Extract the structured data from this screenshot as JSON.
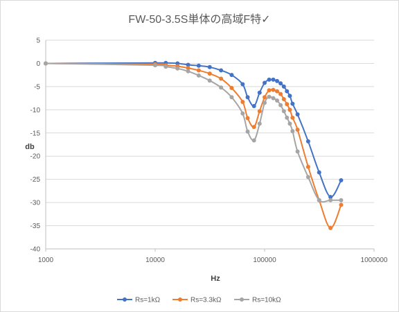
{
  "chart_data": {
    "type": "scatter",
    "title": "FW-50-3.5S単体の高域F特✓",
    "xlabel": "Hz",
    "ylabel": "db",
    "xscale": "log",
    "xlim": [
      1000,
      1000000
    ],
    "ylim": [
      -40,
      5
    ],
    "x_ticks": [
      "1000",
      "10000",
      "100000",
      "1000000"
    ],
    "y_ticks": [
      "5",
      "0",
      "-5",
      "-10",
      "-15",
      "-20",
      "-25",
      "-30",
      "-35",
      "-40"
    ],
    "grid": "horizontal",
    "legend_position": "bottom",
    "line_style": "smooth-with-markers",
    "series": [
      {
        "name": "Rs=1kΩ",
        "color": "#4472c4",
        "x": [
          1000,
          10000,
          12500,
          16000,
          20000,
          25000,
          31500,
          40000,
          50000,
          63000,
          70000,
          80000,
          90000,
          100000,
          110000,
          120000,
          130000,
          140000,
          150000,
          160000,
          170000,
          180000,
          200000,
          250000,
          315000,
          400000,
          500000
        ],
        "y": [
          0,
          0.1,
          0.1,
          0,
          -0.3,
          -0.5,
          -0.8,
          -1.5,
          -2.5,
          -4.5,
          -7.3,
          -9.2,
          -6.3,
          -4.2,
          -3.5,
          -3.5,
          -3.8,
          -4.3,
          -5.0,
          -6.0,
          -7.0,
          -8.7,
          -11.0,
          -16.8,
          -23.5,
          -28.8,
          -25.2
        ]
      },
      {
        "name": "Rs=3.3kΩ",
        "color": "#ed7d31",
        "x": [
          1000,
          10000,
          12500,
          16000,
          20000,
          25000,
          31500,
          40000,
          50000,
          63000,
          70000,
          80000,
          90000,
          100000,
          110000,
          120000,
          130000,
          140000,
          150000,
          160000,
          170000,
          180000,
          200000,
          250000,
          315000,
          400000,
          500000
        ],
        "y": [
          0,
          -0.2,
          -0.4,
          -0.6,
          -1.0,
          -1.5,
          -2.2,
          -3.3,
          -5.3,
          -8.3,
          -11.8,
          -13.7,
          -10.3,
          -7.3,
          -5.8,
          -5.7,
          -6.0,
          -6.6,
          -7.7,
          -8.8,
          -10.0,
          -11.7,
          -14.3,
          -22.3,
          -29.5,
          -35.5,
          -30.5
        ]
      },
      {
        "name": "Rs=10kΩ",
        "color": "#a5a5a5",
        "x": [
          1000,
          10000,
          12500,
          16000,
          20000,
          25000,
          31500,
          40000,
          50000,
          63000,
          70000,
          80000,
          90000,
          100000,
          110000,
          120000,
          130000,
          140000,
          150000,
          160000,
          170000,
          180000,
          200000,
          250000,
          315000,
          400000,
          500000
        ],
        "y": [
          0,
          -0.4,
          -0.7,
          -1.1,
          -1.7,
          -2.6,
          -3.7,
          -5.2,
          -7.3,
          -10.8,
          -14.7,
          -16.6,
          -13.0,
          -8.5,
          -7.2,
          -7.5,
          -8.0,
          -9.0,
          -10.3,
          -11.7,
          -13.0,
          -14.6,
          -19.0,
          -24.5,
          -29.5,
          -29.5,
          -29.5
        ]
      }
    ]
  }
}
